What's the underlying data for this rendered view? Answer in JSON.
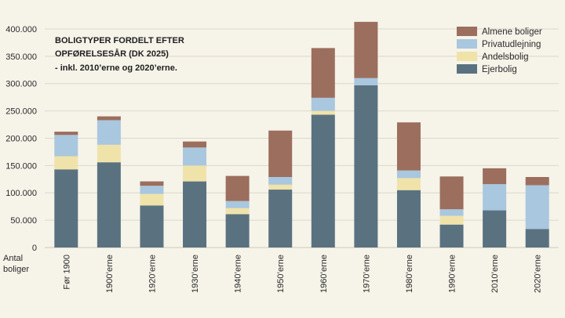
{
  "chart_data": {
    "type": "bar",
    "stacked": true,
    "title_lines": [
      "BOLIGTYPER FORDELT EFTER",
      "OPFØRELSESÅR (DK 2025)",
      "- inkl. 2010’erne og 2020’erne."
    ],
    "ylabel_lines": [
      "Antal",
      "boliger"
    ],
    "ylim": [
      0,
      420000
    ],
    "yticks": [
      0,
      50000,
      100000,
      150000,
      200000,
      250000,
      300000,
      350000,
      400000
    ],
    "ytick_labels": [
      "0",
      "50.000",
      "100.000",
      "150.000",
      "200.000",
      "250.000",
      "300.000",
      "350.000",
      "400.000"
    ],
    "categories": [
      "Før 1900",
      "1900’erne",
      "1920’erne",
      "1930’erne",
      "1940’erne",
      "1950’erne",
      "1960’erne",
      "1970’erne",
      "1980’erne",
      "1990’erne",
      "2010’erne",
      "2020’erne"
    ],
    "series": [
      {
        "name": "Ejerbolig",
        "color": "#5a7280",
        "values": [
          143000,
          156000,
          77000,
          121000,
          61000,
          106000,
          243000,
          297000,
          105000,
          42000,
          68000,
          34000
        ]
      },
      {
        "name": "Andelsbolig",
        "color": "#f0e3aa",
        "values": [
          24000,
          32000,
          21000,
          29000,
          11000,
          9000,
          7000,
          0,
          22000,
          16000,
          0,
          0
        ]
      },
      {
        "name": "Privatudlejning",
        "color": "#a9c7de",
        "values": [
          39000,
          45000,
          15000,
          33000,
          13000,
          14000,
          24000,
          13000,
          14000,
          12000,
          48000,
          80000
        ]
      },
      {
        "name": "Almene boliger",
        "color": "#9b6e5e",
        "values": [
          6000,
          7000,
          8000,
          11000,
          46000,
          85000,
          91000,
          103000,
          88000,
          60000,
          29000,
          15000
        ]
      }
    ],
    "legend_order": [
      "Almene boliger",
      "Privatudlejning",
      "Andelsbolig",
      "Ejerbolig"
    ],
    "legend_position": "top-right",
    "grid": true
  }
}
